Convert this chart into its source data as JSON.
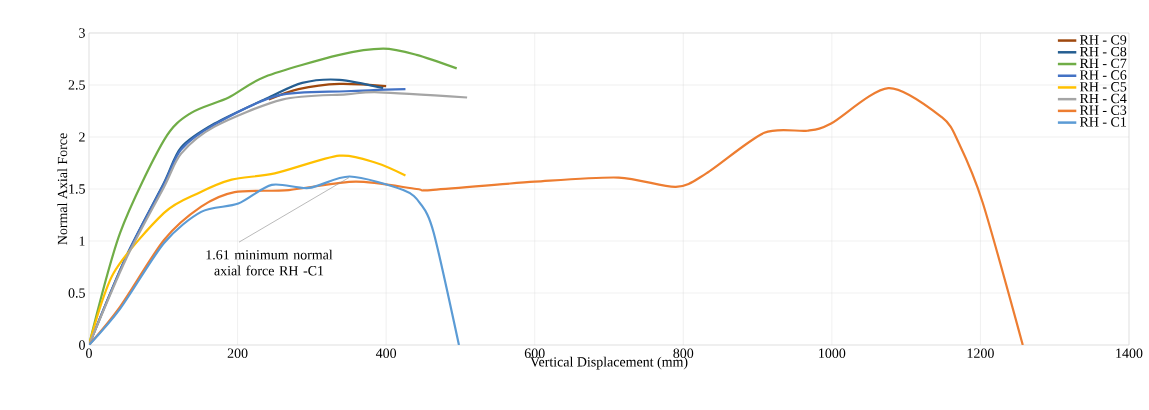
{
  "chart_data": {
    "type": "line",
    "xlabel": "Vertical Displacement (mm)",
    "ylabel": "Normal Axial Force",
    "xlim": [
      0,
      1400
    ],
    "ylim": [
      0,
      3
    ],
    "xticks": [
      0,
      200,
      400,
      600,
      800,
      1000,
      1200,
      1400
    ],
    "yticks": [
      0,
      0.5,
      1,
      1.5,
      2,
      2.5,
      3
    ],
    "grid": true,
    "legend": "top right",
    "annotations": [
      {
        "text": "1.61 minimum normal axial force RH -C1",
        "x": 350,
        "y": 1.61
      }
    ],
    "series": [
      {
        "name": "RH - C9",
        "color": "#9e480e",
        "x": [
          242,
          282,
          337,
          400
        ],
        "values": [
          2.36,
          2.46,
          2.51,
          2.49
        ]
      },
      {
        "name": "RH - C8",
        "color": "#255e91",
        "x": [
          0,
          50,
          101,
          124,
          169,
          242,
          287,
          337,
          396
        ],
        "values": [
          0,
          0.85,
          1.56,
          1.9,
          2.13,
          2.38,
          2.52,
          2.55,
          2.47
        ]
      },
      {
        "name": "RH - C7",
        "color": "#70ad47",
        "x": [
          0,
          42,
          101,
          137,
          188,
          237,
          337,
          396,
          441,
          495
        ],
        "values": [
          0,
          1.08,
          1.97,
          2.23,
          2.38,
          2.58,
          2.79,
          2.85,
          2.79,
          2.66
        ]
      },
      {
        "name": "RH - C6",
        "color": "#4472c4",
        "x": [
          0,
          50,
          101,
          124,
          169,
          255,
          346,
          426
        ],
        "values": [
          0,
          0.85,
          1.55,
          1.88,
          2.12,
          2.4,
          2.44,
          2.46
        ]
      },
      {
        "name": "RH - C5",
        "color": "#ffc000",
        "x": [
          0,
          33,
          101,
          147,
          192,
          250,
          337,
          387,
          426
        ],
        "values": [
          0,
          0.69,
          1.27,
          1.46,
          1.59,
          1.65,
          1.82,
          1.75,
          1.63
        ]
      },
      {
        "name": "RH - C4",
        "color": "#a5a5a5",
        "x": [
          0,
          50,
          101,
          124,
          169,
          260,
          346,
          390,
          509
        ],
        "values": [
          0,
          0.83,
          1.52,
          1.84,
          2.1,
          2.36,
          2.41,
          2.43,
          2.38
        ]
      },
      {
        "name": "RH - C3",
        "color": "#ed7d31",
        "x": [
          0,
          42,
          101,
          151,
          196,
          269,
          359,
          441,
          460,
          600,
          713,
          790,
          831,
          909,
          967,
          999,
          1076,
          1148,
          1171,
          1203,
          1257
        ],
        "values": [
          0,
          0.37,
          1.01,
          1.33,
          1.47,
          1.49,
          1.57,
          1.5,
          1.49,
          1.57,
          1.61,
          1.52,
          1.65,
          2.04,
          2.06,
          2.13,
          2.47,
          2.19,
          1.94,
          1.37,
          0
        ]
      },
      {
        "name": "RH - C1",
        "color": "#5b9bd5",
        "x": [
          0,
          42,
          101,
          151,
          201,
          246,
          296,
          351,
          423,
          446,
          464,
          498
        ],
        "values": [
          0,
          0.35,
          0.98,
          1.28,
          1.36,
          1.54,
          1.51,
          1.62,
          1.49,
          1.36,
          1.08,
          0
        ]
      }
    ]
  }
}
